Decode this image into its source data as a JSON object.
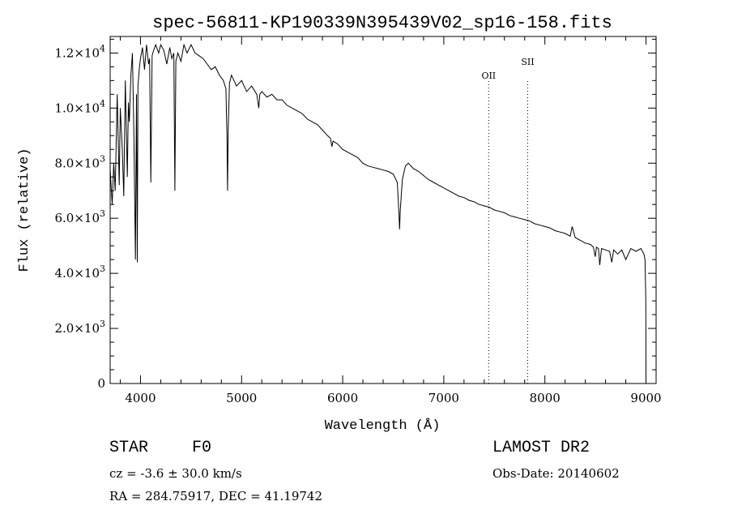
{
  "chart_data": {
    "type": "line",
    "title": "spec-56811-KP190339N395439V02_sp16-158.fits",
    "xlabel": "Wavelength (Å)",
    "ylabel": "Flux (relative)",
    "xlim": [
      3700,
      9100
    ],
    "ylim": [
      0,
      12600
    ],
    "xticks": [
      4000,
      5000,
      6000,
      7000,
      8000,
      9000
    ],
    "xtick_labels": [
      "4000",
      "5000",
      "6000",
      "7000",
      "8000",
      "9000"
    ],
    "yticks": [
      0,
      2000,
      4000,
      6000,
      8000,
      10000,
      12000
    ],
    "ytick_labels": [
      {
        "mantissa": "0",
        "exp": ""
      },
      {
        "mantissa": "2.0×10",
        "exp": "3"
      },
      {
        "mantissa": "4.0×10",
        "exp": "3"
      },
      {
        "mantissa": "6.0×10",
        "exp": "3"
      },
      {
        "mantissa": "8.0×10",
        "exp": "3"
      },
      {
        "mantissa": "1.0×10",
        "exp": "4"
      },
      {
        "mantissa": "1.2×10",
        "exp": "4"
      }
    ],
    "grid": false,
    "series": [
      {
        "x": [
          3700,
          3720,
          3735,
          3750,
          3770,
          3790,
          3800,
          3820,
          3835,
          3850,
          3870,
          3880,
          3890,
          3905,
          3920,
          3935,
          3950,
          3960,
          3968,
          3975,
          3990,
          4000,
          4020,
          4040,
          4060,
          4080,
          4090,
          4102,
          4115,
          4130,
          4150,
          4180,
          4200,
          4230,
          4260,
          4290,
          4310,
          4330,
          4340,
          4350,
          4370,
          4400,
          4430,
          4460,
          4500,
          4540,
          4580,
          4620,
          4660,
          4700,
          4740,
          4780,
          4820,
          4845,
          4855,
          4861,
          4868,
          4880,
          4900,
          4950,
          5000,
          5050,
          5100,
          5150,
          5170,
          5180,
          5200,
          5250,
          5300,
          5350,
          5400,
          5450,
          5500,
          5550,
          5600,
          5650,
          5700,
          5750,
          5800,
          5850,
          5880,
          5893,
          5905,
          5950,
          6000,
          6050,
          6100,
          6150,
          6200,
          6250,
          6300,
          6350,
          6400,
          6450,
          6500,
          6540,
          6556,
          6563,
          6570,
          6590,
          6620,
          6650,
          6700,
          6750,
          6800,
          6850,
          6900,
          6950,
          7000,
          7050,
          7100,
          7150,
          7200,
          7250,
          7300,
          7350,
          7400,
          7450,
          7500,
          7550,
          7600,
          7650,
          7700,
          7750,
          7800,
          7850,
          7900,
          7950,
          8000,
          8050,
          8100,
          8150,
          8200,
          8250,
          8270,
          8300,
          8350,
          8400,
          8450,
          8480,
          8498,
          8510,
          8530,
          8542,
          8560,
          8600,
          8640,
          8662,
          8680,
          8720,
          8760,
          8800,
          8850,
          8900,
          8950,
          8980,
          8990,
          8998,
          9000
        ],
        "y": [
          7800,
          6500,
          8000,
          7000,
          10500,
          7200,
          10000,
          8500,
          6800,
          11000,
          7500,
          10200,
          9500,
          11200,
          12000,
          9000,
          4500,
          10500,
          4400,
          10800,
          11500,
          11800,
          12200,
          11400,
          12300,
          11600,
          11800,
          7300,
          11900,
          12100,
          12300,
          12000,
          12300,
          12100,
          11600,
          12200,
          11800,
          12000,
          7000,
          11700,
          12000,
          11700,
          12300,
          12000,
          12300,
          12000,
          11900,
          11800,
          11600,
          11400,
          11500,
          11200,
          11000,
          10700,
          9000,
          7000,
          9300,
          10900,
          11200,
          10800,
          11000,
          10600,
          10800,
          10500,
          10000,
          10500,
          10600,
          10400,
          10500,
          10300,
          10300,
          10100,
          10000,
          9900,
          9800,
          9600,
          9500,
          9400,
          9200,
          9000,
          8900,
          8600,
          8800,
          8700,
          8500,
          8400,
          8300,
          8200,
          8000,
          7900,
          7850,
          7800,
          7750,
          7700,
          7600,
          7300,
          6200,
          5600,
          6300,
          7400,
          7900,
          8000,
          7800,
          7700,
          7550,
          7400,
          7300,
          7200,
          7100,
          7000,
          6900,
          6800,
          6750,
          6650,
          6600,
          6500,
          6450,
          6400,
          6300,
          6250,
          6200,
          6100,
          6050,
          6000,
          5950,
          5900,
          5800,
          5750,
          5700,
          5650,
          5550,
          5500,
          5450,
          5350,
          5700,
          5300,
          5200,
          5100,
          5050,
          4950,
          4600,
          4950,
          4900,
          4300,
          4900,
          4850,
          4800,
          4400,
          4850,
          4700,
          4850,
          4500,
          4900,
          4800,
          4900,
          4700,
          4500,
          3000,
          200
        ]
      }
    ],
    "annotations": [
      {
        "text": "OII",
        "x": 7444
      },
      {
        "text": "SII",
        "x": 7830
      }
    ]
  },
  "info": {
    "class_label": "STAR",
    "subclass_label": "F0",
    "cz_text": "cz = -3.6 ± 30.0 km/s",
    "coords_text": "RA = 284.75917, DEC =  41.19742",
    "survey_label": "LAMOST DR2",
    "obs_date_text": "Obs-Date: 20140602"
  }
}
